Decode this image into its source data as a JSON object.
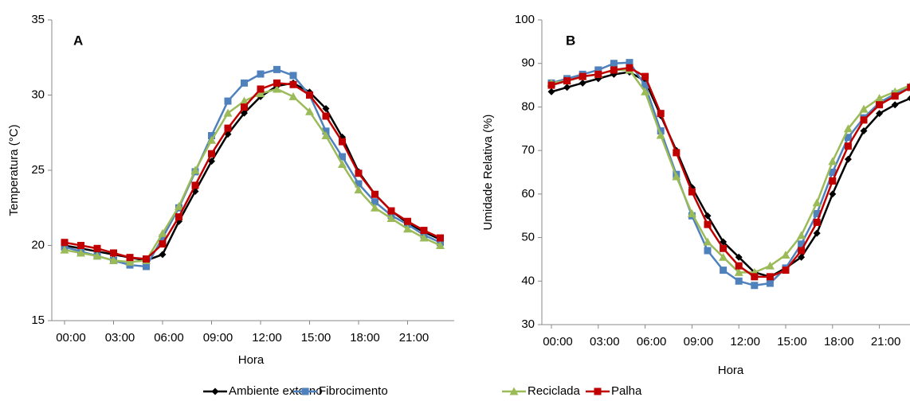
{
  "chart_data": [
    {
      "type": "line",
      "panel_label": "A",
      "y_label": "Temperatura (°C)",
      "x_label": "Hora",
      "categories": [
        "00:00",
        null,
        null,
        "03:00",
        null,
        null,
        "06:00",
        null,
        null,
        "09:00",
        null,
        null,
        "12:00",
        null,
        null,
        "15:00",
        null,
        null,
        "18:00",
        null,
        null,
        "21:00",
        null,
        null
      ],
      "ylim": [
        15,
        35
      ],
      "yticks": [
        15,
        20,
        25,
        30,
        35
      ],
      "series": [
        {
          "name": "Ambiente externo",
          "color": "#000000",
          "marker": "diamond",
          "values": [
            20.0,
            19.8,
            19.6,
            19.4,
            19.2,
            19.0,
            19.4,
            21.6,
            23.6,
            25.6,
            27.4,
            28.8,
            29.9,
            30.6,
            30.8,
            30.2,
            29.1,
            27.2,
            24.9,
            23.4,
            22.3,
            21.5,
            20.9,
            20.4
          ]
        },
        {
          "name": "Fibrocimento",
          "color": "#4f81bd",
          "marker": "square",
          "values": [
            19.9,
            19.6,
            19.3,
            19.0,
            18.7,
            18.6,
            20.5,
            22.5,
            24.9,
            27.3,
            29.6,
            30.8,
            31.4,
            31.7,
            31.3,
            30.0,
            27.6,
            25.9,
            24.1,
            22.9,
            22.0,
            21.4,
            20.7,
            20.2
          ]
        },
        {
          "name": "Reciclada",
          "color": "#9bbb59",
          "marker": "triangle",
          "values": [
            19.7,
            19.5,
            19.3,
            19.0,
            18.9,
            19.0,
            20.8,
            22.6,
            25.0,
            27.0,
            28.8,
            29.6,
            30.1,
            30.4,
            29.9,
            28.9,
            27.3,
            25.4,
            23.7,
            22.5,
            21.8,
            21.1,
            20.5,
            20.0
          ]
        },
        {
          "name": "Palha",
          "color": "#c00000",
          "marker": "square",
          "values": [
            20.2,
            20.0,
            19.8,
            19.5,
            19.2,
            19.1,
            20.1,
            21.9,
            24.0,
            26.1,
            27.8,
            29.2,
            30.4,
            30.8,
            30.7,
            30.0,
            28.6,
            26.9,
            24.8,
            23.4,
            22.3,
            21.6,
            21.0,
            20.5
          ]
        }
      ]
    },
    {
      "type": "line",
      "panel_label": "B",
      "y_label": "Umidade Relativa (%)",
      "x_label": "Hora",
      "categories": [
        "00:00",
        null,
        null,
        "03:00",
        null,
        null,
        "06:00",
        null,
        null,
        "09:00",
        null,
        null,
        "12:00",
        null,
        null,
        "15:00",
        null,
        null,
        "18:00",
        null,
        null,
        "21:00",
        null,
        null
      ],
      "ylim": [
        30,
        100
      ],
      "yticks": [
        30,
        40,
        50,
        60,
        70,
        80,
        90,
        100
      ],
      "series": [
        {
          "color": "#000000",
          "marker": "diamond",
          "values": [
            83.5,
            84.5,
            85.5,
            86.5,
            87.5,
            88,
            86,
            78,
            70,
            61.5,
            55,
            49,
            45.5,
            42,
            41,
            43,
            45.5,
            51,
            60,
            68,
            74.5,
            78.5,
            80.5,
            82
          ]
        },
        {
          "color": "#4f81bd",
          "marker": "square",
          "values": [
            85.5,
            86.5,
            87.5,
            88.5,
            90,
            90.2,
            85,
            74.5,
            64.5,
            55,
            47,
            42.5,
            40,
            39,
            39.5,
            43,
            48.5,
            55.5,
            65,
            73,
            77.5,
            81,
            83,
            84.5
          ]
        },
        {
          "color": "#9bbb59",
          "marker": "triangle",
          "values": [
            85.5,
            86,
            87,
            87.5,
            88.5,
            88.5,
            83.5,
            73.5,
            64,
            55.5,
            49,
            45.5,
            42,
            42,
            43.5,
            46,
            50.5,
            58,
            67.5,
            75,
            79.5,
            82,
            83.5,
            85
          ]
        },
        {
          "color": "#c00000",
          "marker": "square",
          "values": [
            85,
            86,
            87,
            87.5,
            88.5,
            89,
            87,
            78.5,
            69.5,
            60.5,
            53,
            47.5,
            43.5,
            41,
            41,
            42.5,
            47,
            53.5,
            63,
            71,
            77,
            80.5,
            82.5,
            84.5
          ]
        }
      ]
    }
  ]
}
